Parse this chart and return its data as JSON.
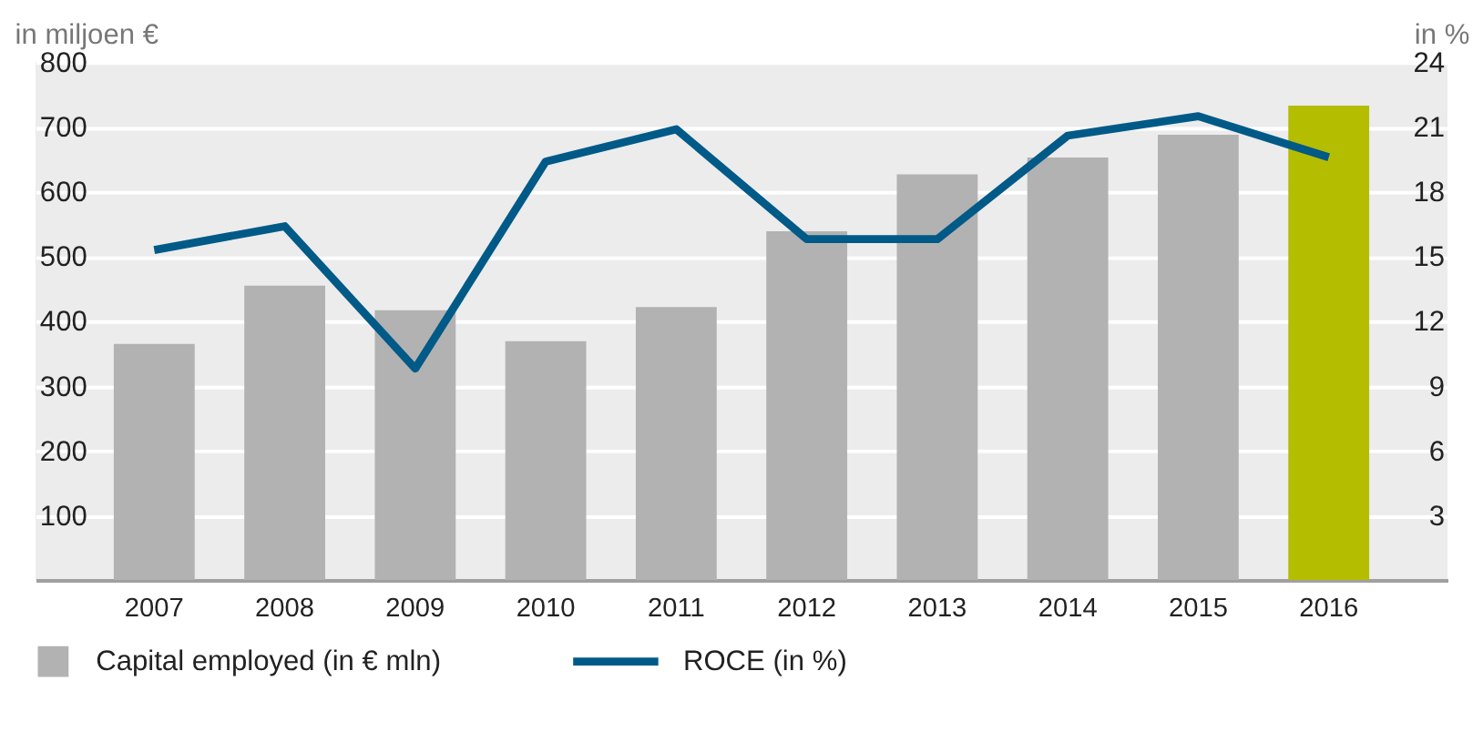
{
  "chart_data": {
    "type": "bar",
    "ylabel": "in miljoen €",
    "y2label": "in %",
    "categories": [
      "2007",
      "2008",
      "2009",
      "2010",
      "2011",
      "2012",
      "2013",
      "2014",
      "2015",
      "2016"
    ],
    "series": [
      {
        "name": "Capital employed (in € mln)",
        "color": "#b2b2b2",
        "colors": [
          "#b2b2b2",
          "#b2b2b2",
          "#b2b2b2",
          "#b2b2b2",
          "#b2b2b2",
          "#b2b2b2",
          "#b2b2b2",
          "#b2b2b2",
          "#b2b2b2",
          "#b5bd00"
        ],
        "values": [
          365,
          455,
          417,
          369,
          422,
          539,
          627,
          653,
          688,
          733
        ]
      },
      {
        "name": "ROCE (in %)",
        "type": "line",
        "axis": "y2",
        "color": "#005a87",
        "values": [
          15.3,
          16.4,
          9.8,
          19.4,
          20.9,
          15.8,
          15.8,
          20.6,
          21.5,
          19.6
        ]
      }
    ],
    "ylim": [
      0,
      800
    ],
    "yticks": [
      100,
      200,
      300,
      400,
      500,
      600,
      700,
      800
    ],
    "y2lim": [
      0,
      24
    ],
    "y2ticks": [
      3,
      6,
      9,
      12,
      15,
      18,
      21,
      24
    ],
    "grid": "y",
    "legend": "bottom",
    "marker": "none",
    "line_style": "solid"
  }
}
